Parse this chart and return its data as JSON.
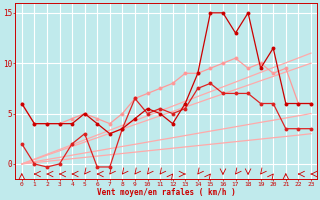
{
  "xlabel": "Vent moyen/en rafales ( km/h )",
  "background_color": "#c0eaec",
  "grid_color": "#aadddd",
  "x": [
    0,
    1,
    2,
    3,
    4,
    5,
    6,
    7,
    8,
    9,
    10,
    11,
    12,
    13,
    14,
    15,
    16,
    17,
    18,
    19,
    20,
    21,
    22,
    23
  ],
  "slope_line1": [
    0,
    0.13,
    0.26,
    0.39,
    0.52,
    0.65,
    0.78,
    0.91,
    1.04,
    1.17,
    1.3,
    1.43,
    1.56,
    1.69,
    1.82,
    1.95,
    2.08,
    2.21,
    2.34,
    2.47,
    2.6,
    2.73,
    2.86,
    3.0
  ],
  "slope_line2": [
    0,
    0.22,
    0.44,
    0.65,
    0.87,
    1.09,
    1.3,
    1.52,
    1.74,
    1.95,
    2.17,
    2.39,
    2.6,
    2.82,
    3.04,
    3.26,
    3.47,
    3.69,
    3.91,
    4.13,
    4.34,
    4.56,
    4.78,
    5.0
  ],
  "slope_line3": [
    0,
    0.43,
    0.87,
    1.3,
    1.74,
    2.17,
    2.6,
    3.04,
    3.47,
    3.91,
    4.34,
    4.78,
    5.21,
    5.65,
    6.08,
    6.52,
    6.95,
    7.39,
    7.82,
    8.26,
    8.69,
    9.13,
    9.56,
    10.0
  ],
  "slope_line4": [
    0,
    0.48,
    0.96,
    1.43,
    1.91,
    2.39,
    2.87,
    3.35,
    3.83,
    4.3,
    4.78,
    5.26,
    5.74,
    6.22,
    6.7,
    7.17,
    7.65,
    8.13,
    8.61,
    9.09,
    9.57,
    10.04,
    10.52,
    11.0
  ],
  "line_pink": [
    6,
    4,
    4,
    4,
    4.5,
    5,
    4.5,
    4,
    5,
    6.5,
    7,
    7.5,
    8,
    9,
    9,
    9.5,
    10,
    10.5,
    9.5,
    10,
    9,
    9.5,
    6,
    6
  ],
  "line_red1": [
    2,
    0,
    -0.3,
    0,
    2,
    3,
    -0.3,
    -0.3,
    3.5,
    6.5,
    5,
    5.5,
    5,
    5.5,
    7.5,
    8,
    7,
    7,
    7,
    6,
    6,
    3.5,
    3.5,
    3.5
  ],
  "line_red2": [
    6,
    4,
    4,
    4,
    4,
    5,
    4,
    3,
    3.5,
    4.5,
    5.5,
    5,
    4,
    6,
    9,
    15,
    15,
    13,
    15,
    9.5,
    11.5,
    6,
    6,
    6
  ],
  "ylim": [
    -1.5,
    16
  ],
  "yticks": [
    0,
    5,
    10,
    15
  ],
  "xlim": [
    -0.5,
    23.5
  ],
  "slope_color": "#ffaaaa",
  "pink_color": "#ff9999",
  "red1_color": "#dd2222",
  "red2_color": "#cc0000"
}
